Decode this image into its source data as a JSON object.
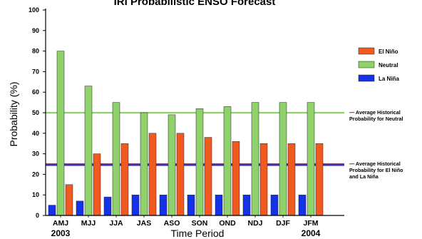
{
  "chart_data": {
    "type": "bar",
    "title": "IRI Probabilistic ENSO Forecast",
    "xlabel": "Time Period",
    "ylabel": "Probability (%)",
    "ylim": [
      0,
      100
    ],
    "yticks": [
      0,
      10,
      20,
      30,
      40,
      50,
      60,
      70,
      80,
      90,
      100
    ],
    "categories": [
      "AMJ",
      "MJJ",
      "JJA",
      "JAS",
      "ASO",
      "SON",
      "OND",
      "NDJ",
      "DJF",
      "JFM"
    ],
    "year_labels": [
      {
        "text": "2003",
        "category_index": 0
      },
      {
        "text": "2004",
        "category_index": 9
      }
    ],
    "series": [
      {
        "name": "La Niña",
        "color": "#1432e6",
        "values": [
          5,
          7,
          9,
          10,
          10,
          10,
          10,
          10,
          10,
          10
        ]
      },
      {
        "name": "Neutral",
        "color": "#8fd16a",
        "values": [
          80,
          63,
          55,
          50,
          49,
          52,
          53,
          55,
          55,
          55
        ]
      },
      {
        "name": "El Niño",
        "color": "#f05a1e",
        "values": [
          15,
          30,
          35,
          40,
          40,
          38,
          36,
          35,
          35,
          35
        ]
      }
    ],
    "legend": {
      "placement": "right",
      "order": [
        "El Niño",
        "Neutral",
        "La Niña"
      ]
    },
    "reference_lines": [
      {
        "y": 50,
        "color": "#8fd16a",
        "label_lines": [
          "— Average Historical",
          "Probability for Neutral"
        ]
      },
      {
        "y": 25,
        "color": "#e0241b",
        "label_lines": [
          "— Average Historical",
          "Probability for El Niño",
          "and La Niña"
        ]
      },
      {
        "y": 24.5,
        "color": "#1432e6"
      }
    ],
    "grid": false,
    "axis_color": "#000000"
  }
}
